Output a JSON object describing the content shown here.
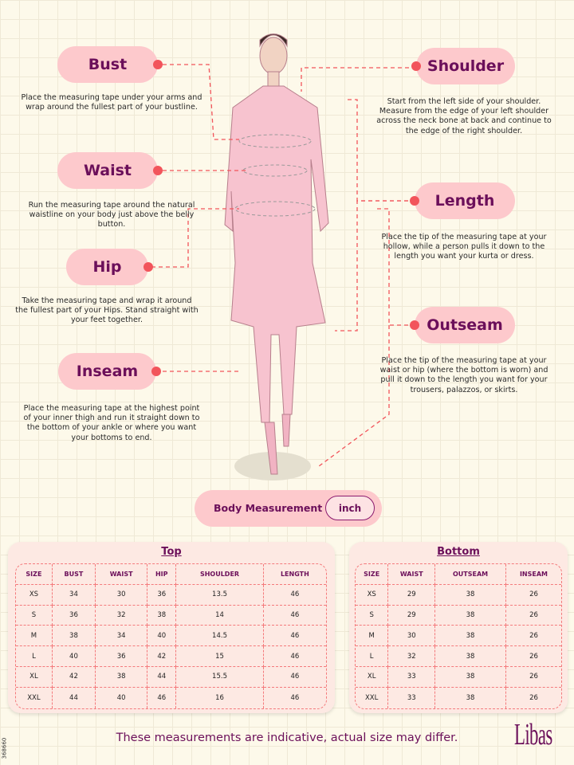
{
  "colors": {
    "pill": "#fdc9cc",
    "accent": "#6b0f5a",
    "dot": "#f2545b",
    "dash": "#f47a7c"
  },
  "measures": {
    "bust": {
      "label": "Bust",
      "desc": "Place the measuring tape under your arms and wrap around the fullest part of your bustline."
    },
    "shoulder": {
      "label": "Shoulder",
      "desc": "Start from the left side of your shoulder. Measure from the edge of your left shoulder across the neck bone at back and continue to the edge of the right shoulder."
    },
    "waist": {
      "label": "Waist",
      "desc": "Run the measuring tape around the natural waistline on your body just above the belly button."
    },
    "length": {
      "label": "Length",
      "desc": "Place the tip of the measuring tape at your hollow, while a person pulls it down to the length you want your kurta or dress."
    },
    "hip": {
      "label": "Hip",
      "desc": "Take the measuring tape and wrap it around the fullest part of your Hips. Stand straight with your feet together."
    },
    "outseam": {
      "label": "Outseam",
      "desc": "Place the tip of the measuring tape at your waist or hip (where the bottom is worn) and pull it down to the length you want for your trousers, palazzos, or skirts."
    },
    "inseam": {
      "label": "Inseam",
      "desc": "Place the measuring tape at the highest point of your inner thigh and run it straight down to the bottom of your ankle or where you want your bottoms to end."
    }
  },
  "unit_bar": {
    "label": "Body Measurement",
    "unit": "inch"
  },
  "top": {
    "title": "Top",
    "headers": [
      "SIZE",
      "BUST",
      "WAIST",
      "HIP",
      "SHOULDER",
      "LENGTH"
    ],
    "rows": [
      [
        "XS",
        "34",
        "30",
        "36",
        "13.5",
        "46"
      ],
      [
        "S",
        "36",
        "32",
        "38",
        "14",
        "46"
      ],
      [
        "M",
        "38",
        "34",
        "40",
        "14.5",
        "46"
      ],
      [
        "L",
        "40",
        "36",
        "42",
        "15",
        "46"
      ],
      [
        "XL",
        "42",
        "38",
        "44",
        "15.5",
        "46"
      ],
      [
        "XXL",
        "44",
        "40",
        "46",
        "16",
        "46"
      ]
    ]
  },
  "bottom": {
    "title": "Bottom",
    "headers": [
      "SIZE",
      "WAIST",
      "OUTSEAM",
      "INSEAM"
    ],
    "rows": [
      [
        "XS",
        "29",
        "38",
        "26"
      ],
      [
        "S",
        "29",
        "38",
        "26"
      ],
      [
        "M",
        "30",
        "38",
        "26"
      ],
      [
        "L",
        "32",
        "38",
        "26"
      ],
      [
        "XL",
        "33",
        "38",
        "26"
      ],
      [
        "XXL",
        "33",
        "38",
        "26"
      ]
    ]
  },
  "footer": {
    "note": "These measurements are indicative, actual size may differ.",
    "brand": "Libas",
    "code": "368660"
  }
}
